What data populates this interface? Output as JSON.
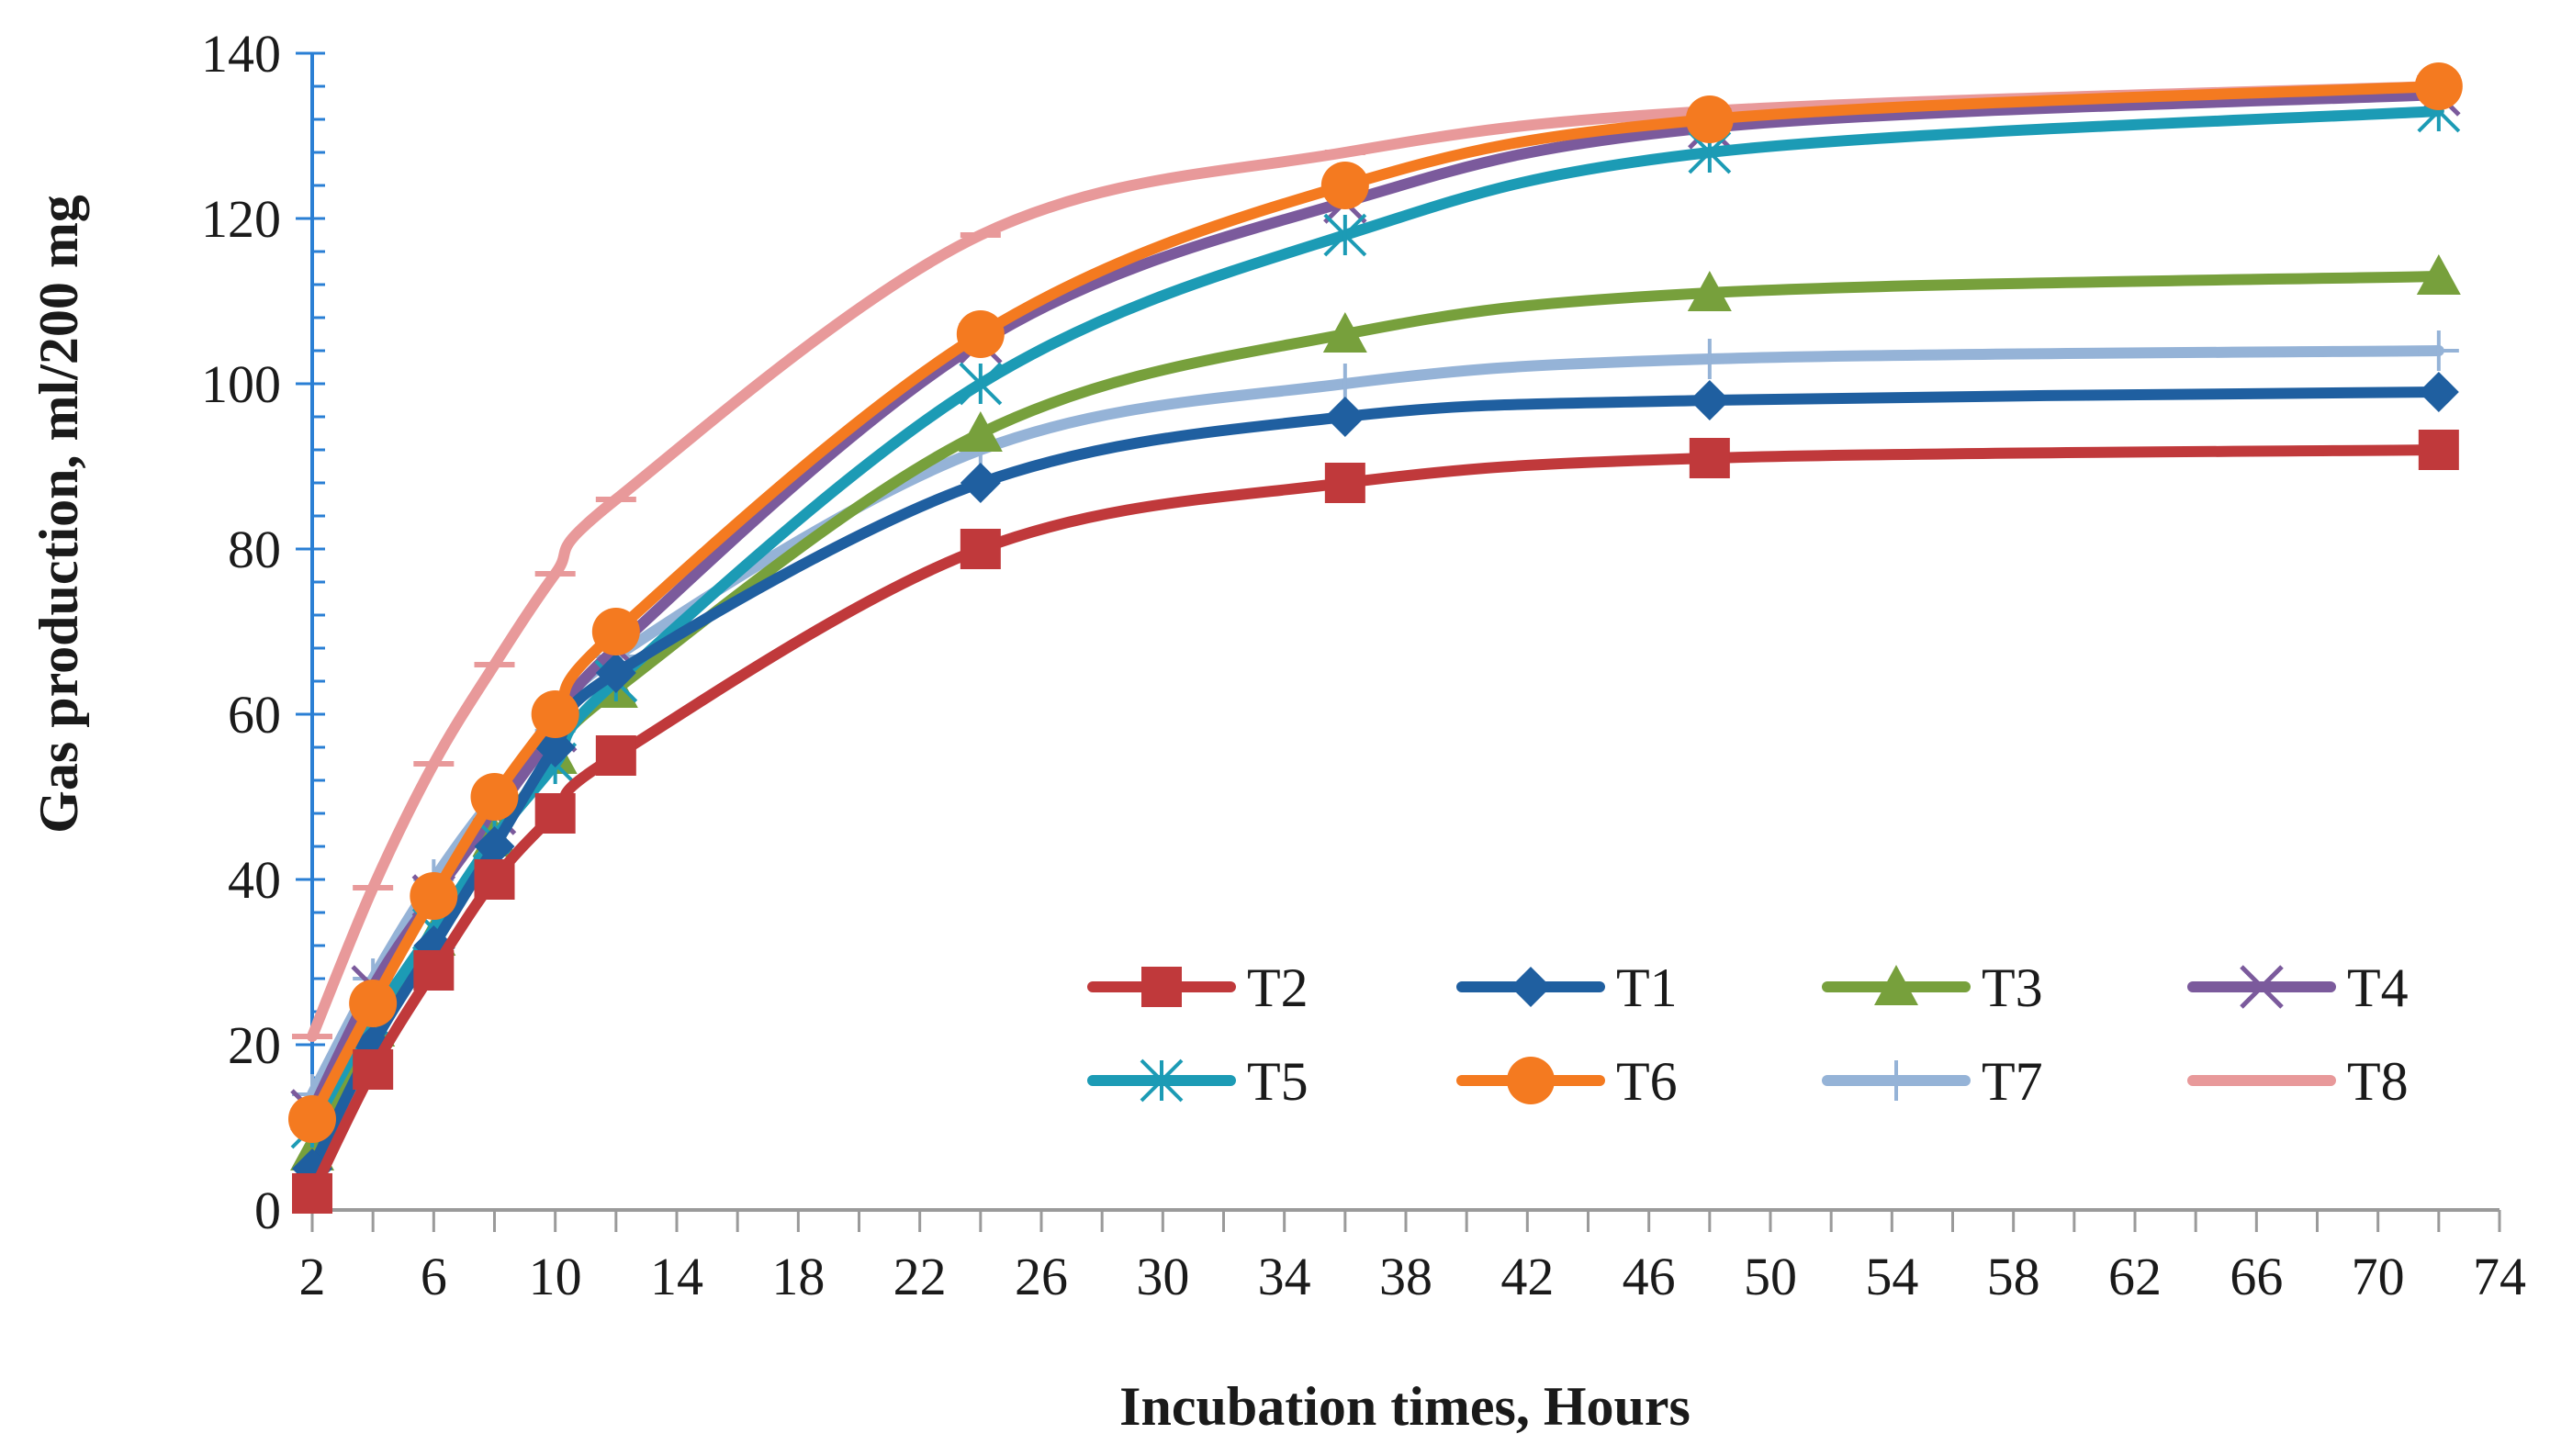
{
  "chart_data": {
    "type": "line",
    "title": "",
    "xlabel": "Incubation times, Hours",
    "ylabel": "Gas production, ml/200 mg",
    "xlim": [
      2,
      74
    ],
    "ylim": [
      0,
      140
    ],
    "x_ticks": [
      2,
      6,
      10,
      14,
      18,
      22,
      26,
      30,
      34,
      38,
      42,
      46,
      50,
      54,
      58,
      62,
      66,
      70,
      74
    ],
    "y_ticks": [
      0,
      20,
      40,
      60,
      80,
      100,
      120,
      140
    ],
    "x_tick_labels": [
      "2",
      "6",
      "10",
      "14",
      "18",
      "22",
      "26",
      "30",
      "34",
      "38",
      "42",
      "46",
      "50",
      "54",
      "58",
      "62",
      "66",
      "70",
      "74"
    ],
    "y_tick_labels": [
      "0",
      "20",
      "40",
      "60",
      "80",
      "100",
      "120",
      "140"
    ],
    "x": [
      2,
      4,
      6,
      8,
      10,
      12,
      24,
      36,
      48,
      72
    ],
    "legend_position": "lower-right",
    "series": [
      {
        "name": "T8",
        "color": "#e8999a",
        "marker": "dash",
        "values": [
          21,
          39,
          54,
          66,
          77,
          86,
          118,
          128,
          133,
          136
        ]
      },
      {
        "name": "T7",
        "color": "#95b3d7",
        "marker": "plus",
        "values": [
          14,
          28,
          40,
          50,
          58,
          67,
          92,
          100,
          103,
          104
        ]
      },
      {
        "name": "T4",
        "color": "#7b5a9c",
        "marker": "x",
        "values": [
          12,
          27,
          38,
          48,
          58,
          68,
          105,
          122,
          131,
          135
        ]
      },
      {
        "name": "T3",
        "color": "#77a03c",
        "marker": "triangle",
        "values": [
          7,
          22,
          33,
          45,
          55,
          63,
          94,
          106,
          111,
          113
        ]
      },
      {
        "name": "T5",
        "color": "#1c9bb5",
        "marker": "asterisk",
        "values": [
          10,
          23,
          34,
          45,
          54,
          64,
          100,
          118,
          128,
          133
        ]
      },
      {
        "name": "T1",
        "color": "#1f5fa0",
        "marker": "diamond",
        "values": [
          5,
          20,
          32,
          44,
          56,
          65,
          88,
          96,
          98,
          99
        ]
      },
      {
        "name": "T6",
        "color": "#f47a20",
        "marker": "circle",
        "values": [
          11,
          25,
          38,
          50,
          60,
          70,
          106,
          124,
          132,
          136
        ]
      },
      {
        "name": "T2",
        "color": "#c0393b",
        "marker": "square",
        "values": [
          2,
          17,
          29,
          40,
          48,
          55,
          80,
          88,
          91,
          92
        ]
      }
    ],
    "legend": [
      [
        "T2",
        "T1",
        "T3",
        "T4"
      ],
      [
        "T5",
        "T6",
        "T7",
        "T8"
      ]
    ]
  }
}
